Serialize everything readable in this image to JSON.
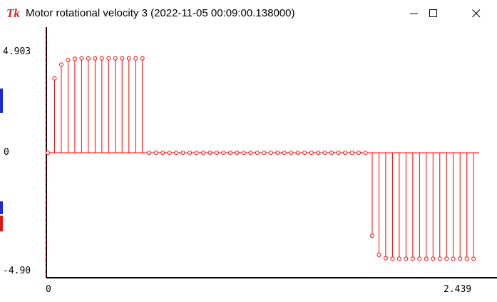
{
  "window": {
    "title": "Motor rotational velocity 3 (2022-11-05 00:09:00.138000)",
    "icon_glyph": "Tk",
    "controls": [
      "minimize-icon",
      "maximize-icon",
      "close-icon"
    ]
  },
  "chart_data": {
    "type": "line",
    "style": "step-stem",
    "title": "",
    "xlabel": "",
    "ylabel": "",
    "y_tick_labels": [
      "4.903",
      "0",
      "-4.90"
    ],
    "x_tick_labels": [
      "0",
      "2.439"
    ],
    "xlim": [
      0,
      2.439
    ],
    "ylim": [
      -4.9,
      4.903
    ],
    "grid": false,
    "color": "#ff0000",
    "series": [
      {
        "x": [
          0,
          0.0383,
          0.0767,
          0.115,
          0.1534,
          0.1917,
          0.23,
          0.2684,
          0.3067,
          0.3451,
          0.3834,
          0.4217,
          0.4601,
          0.4984,
          0.5368,
          0.5751,
          0.6134,
          0.6518,
          0.6901,
          0.7285,
          0.7668,
          0.8051,
          0.8435,
          0.8818,
          0.9202,
          0.9585,
          0.9968,
          1.0352,
          1.0735,
          1.1119,
          1.1502,
          1.1885,
          1.2269,
          1.2652,
          1.3036,
          1.3419,
          1.3802,
          1.4186,
          1.4569,
          1.4953,
          1.5336,
          1.5719,
          1.6103,
          1.6486,
          1.687,
          1.7253,
          1.7636,
          1.802,
          1.8403,
          1.8787,
          1.917,
          1.9553,
          1.9937,
          2.032,
          2.0704,
          2.1087,
          2.147,
          2.1854,
          2.2237,
          2.2621,
          2.3004,
          2.3387,
          2.3771,
          2.4154
        ],
        "y": [
          0,
          3.5,
          4.15,
          4.36,
          4.42,
          4.44,
          4.44,
          4.44,
          4.44,
          4.44,
          4.44,
          4.44,
          4.44,
          4.44,
          4.44,
          0,
          0,
          0,
          0,
          0,
          0,
          0,
          0,
          0,
          0,
          0,
          0,
          0,
          0,
          0,
          0,
          0,
          0,
          0,
          0,
          0,
          0,
          0,
          0,
          0,
          0,
          0,
          0,
          0,
          0,
          0,
          0,
          0,
          -3.49,
          -4.3,
          -4.44,
          -4.46,
          -4.46,
          -4.46,
          -4.46,
          -4.46,
          -4.46,
          -4.46,
          -4.46,
          -4.46,
          -4.46,
          -4.46,
          -4.46,
          -4.46
        ]
      }
    ]
  }
}
